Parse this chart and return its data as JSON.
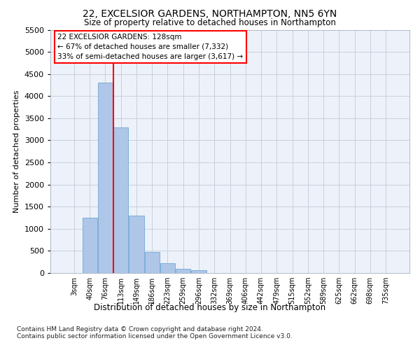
{
  "title1": "22, EXCELSIOR GARDENS, NORTHAMPTON, NN5 6YN",
  "title2": "Size of property relative to detached houses in Northampton",
  "xlabel": "Distribution of detached houses by size in Northampton",
  "ylabel": "Number of detached properties",
  "footer1": "Contains HM Land Registry data © Crown copyright and database right 2024.",
  "footer2": "Contains public sector information licensed under the Open Government Licence v3.0.",
  "annotation_title": "22 EXCELSIOR GARDENS: 128sqm",
  "annotation_line1": "← 67% of detached houses are smaller (7,332)",
  "annotation_line2": "33% of semi-detached houses are larger (3,617) →",
  "bar_labels": [
    "3sqm",
    "40sqm",
    "76sqm",
    "113sqm",
    "149sqm",
    "186sqm",
    "223sqm",
    "259sqm",
    "296sqm",
    "332sqm",
    "369sqm",
    "406sqm",
    "442sqm",
    "479sqm",
    "515sqm",
    "552sqm",
    "589sqm",
    "625sqm",
    "662sqm",
    "698sqm",
    "735sqm"
  ],
  "bar_values": [
    0,
    1250,
    4300,
    3300,
    1300,
    480,
    220,
    100,
    60,
    0,
    0,
    0,
    0,
    0,
    0,
    0,
    0,
    0,
    0,
    0,
    0
  ],
  "bar_color": "#aec6e8",
  "bar_edge_color": "#6fa8d4",
  "red_line_x": 2.5,
  "ylim": [
    0,
    5500
  ],
  "yticks": [
    0,
    500,
    1000,
    1500,
    2000,
    2500,
    3000,
    3500,
    4000,
    4500,
    5000,
    5500
  ],
  "plot_bg_color": "#edf1f9",
  "grid_color": "#c8d0df"
}
